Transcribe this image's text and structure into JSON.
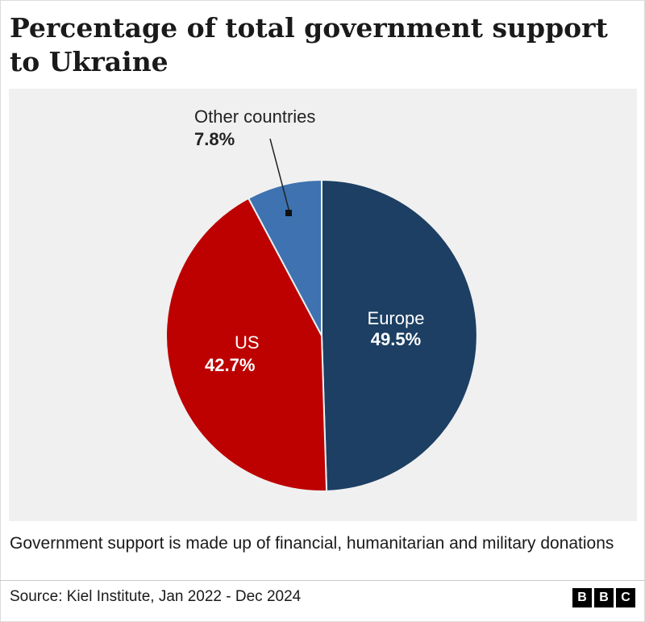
{
  "title": "Percentage of total government support to Ukraine",
  "note": "Government support is made up of financial, humanitarian and military donations",
  "source": "Source: Kiel Institute, Jan 2022 - Dec 2024",
  "logo_letters": [
    "B",
    "B",
    "C"
  ],
  "chart_data": {
    "type": "pie",
    "slices": [
      {
        "label": "Europe",
        "value": 49.5,
        "value_label": "49.5%",
        "color": "#1c3f63",
        "text_color": "#ffffff"
      },
      {
        "label": "US",
        "value": 42.7,
        "value_label": "42.7%",
        "color": "#bd0000",
        "text_color": "#ffffff"
      },
      {
        "label": "Other countries",
        "value": 7.8,
        "value_label": "7.8%",
        "color": "#3e72b0",
        "text_color": "#222222"
      }
    ],
    "start": "12 o'clock",
    "direction": "clockwise"
  }
}
